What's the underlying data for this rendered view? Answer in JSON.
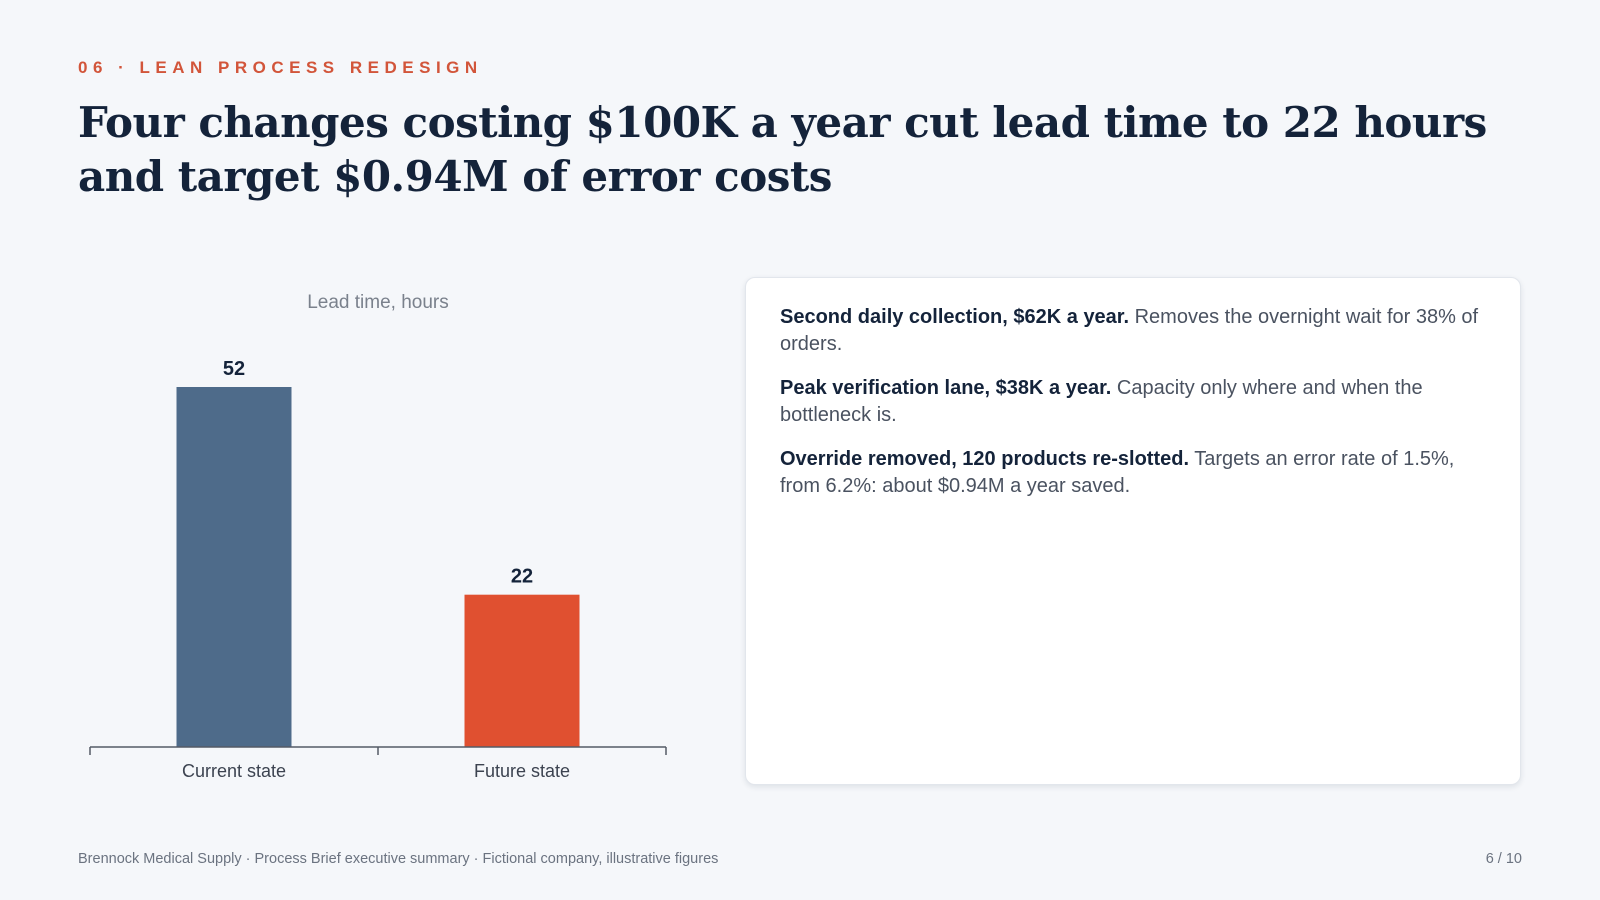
{
  "header": {
    "eyebrow": "06 · LEAN PROCESS REDESIGN",
    "title": "Four changes costing $100K a year cut lead time to 22 hours and target $0.94M of error costs"
  },
  "chart_data": {
    "type": "bar",
    "title": "Lead time, hours",
    "categories": [
      "Current state",
      "Future state"
    ],
    "values": [
      52,
      22
    ],
    "data_labels": [
      "52",
      "22"
    ],
    "ylim": [
      0,
      52
    ],
    "grid": false,
    "colors": [
      "#4e6b8a",
      "#e05030"
    ],
    "axis_color": "#555b66"
  },
  "points": [
    {
      "lead": "Second daily collection, $62K a year.",
      "body": "Removes the overnight wait for 38% of orders."
    },
    {
      "lead": "Peak verification lane, $38K a year.",
      "body": "Capacity only where and when the bottleneck is."
    },
    {
      "lead": "Override removed, 120 products re-slotted.",
      "body": "Targets an error rate of 1.5%, from 6.2%: about $0.94M a year saved."
    }
  ],
  "footer": {
    "source": "Brennock Medical Supply · Process Brief executive summary · Fictional company, illustrative figures",
    "page": "6 / 10"
  }
}
